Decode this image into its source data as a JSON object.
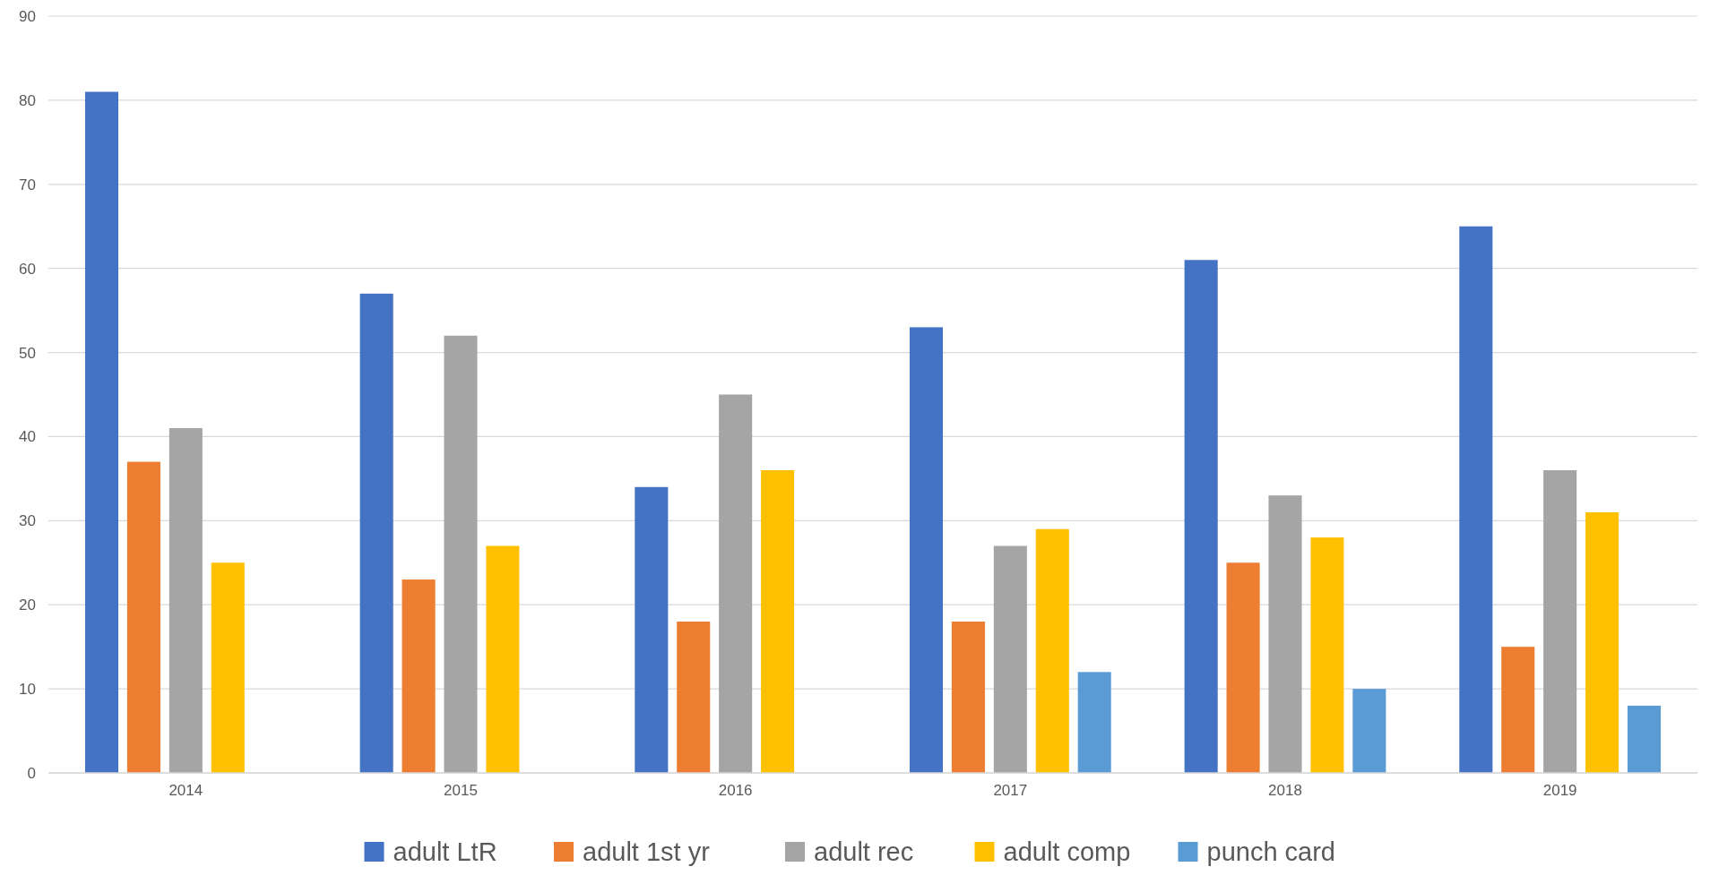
{
  "chart_data": {
    "type": "bar",
    "categories": [
      "2014",
      "2015",
      "2016",
      "2017",
      "2018",
      "2019"
    ],
    "series": [
      {
        "name": "adult LtR",
        "color": "#4472c4",
        "values": [
          81,
          57,
          34,
          53,
          61,
          65
        ]
      },
      {
        "name": "adult 1st yr",
        "color": "#ed7d31",
        "values": [
          37,
          23,
          18,
          18,
          25,
          15
        ]
      },
      {
        "name": "adult rec",
        "color": "#a5a5a5",
        "values": [
          41,
          52,
          45,
          27,
          33,
          36
        ]
      },
      {
        "name": "adult comp",
        "color": "#ffc000",
        "values": [
          25,
          27,
          36,
          29,
          28,
          31
        ]
      },
      {
        "name": "punch card",
        "color": "#5b9bd5",
        "values": [
          null,
          null,
          null,
          12,
          10,
          8
        ]
      }
    ],
    "ylim": [
      0,
      90
    ],
    "yticks": [
      0,
      10,
      20,
      30,
      40,
      50,
      60,
      70,
      80,
      90
    ],
    "grid": "y",
    "legend": "bottom"
  }
}
